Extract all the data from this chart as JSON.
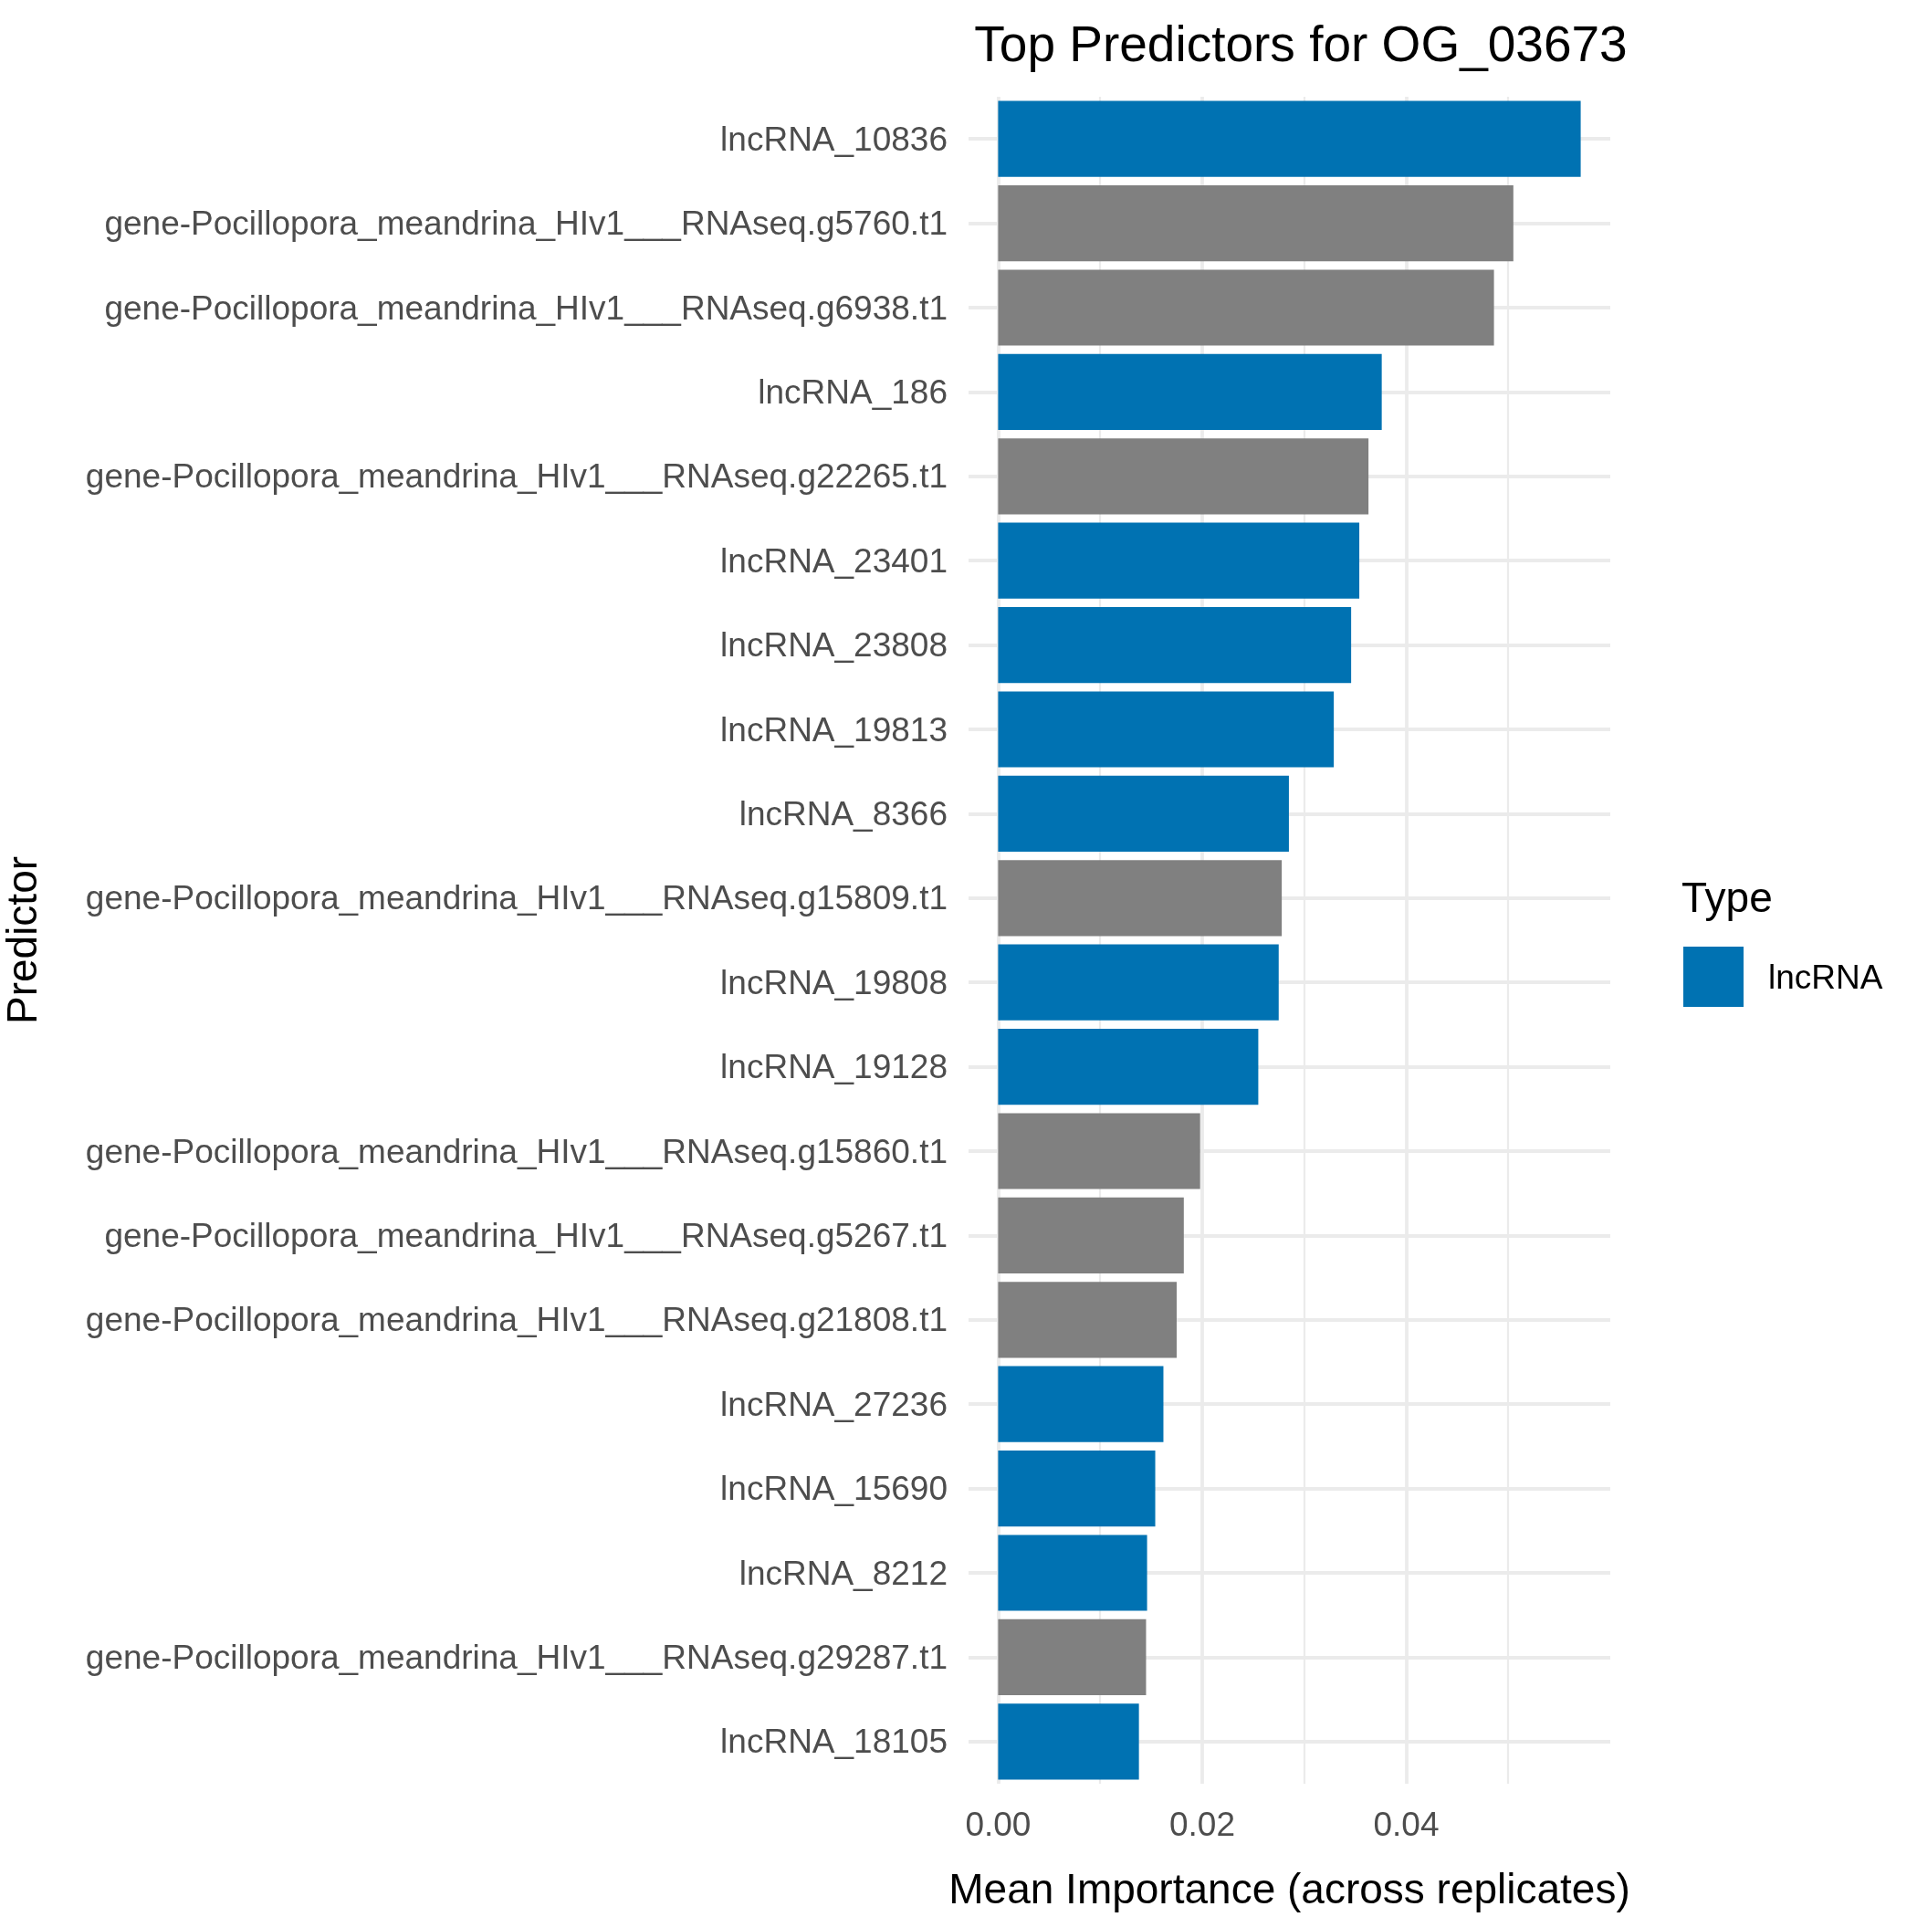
{
  "chart_data": {
    "type": "bar",
    "orientation": "horizontal",
    "title": "Top Predictors for OG_03673",
    "xlabel": "Mean Importance (across replicates)",
    "ylabel": "Predictor",
    "legend_title": "Type",
    "categories": [
      "lncRNA_10836",
      "gene-Pocillopora_meandrina_HIv1___RNAseq.g5760.t1",
      "gene-Pocillopora_meandrina_HIv1___RNAseq.g6938.t1",
      "lncRNA_186",
      "gene-Pocillopora_meandrina_HIv1___RNAseq.g22265.t1",
      "lncRNA_23401",
      "lncRNA_23808",
      "lncRNA_19813",
      "lncRNA_8366",
      "gene-Pocillopora_meandrina_HIv1___RNAseq.g15809.t1",
      "lncRNA_19808",
      "lncRNA_19128",
      "gene-Pocillopora_meandrina_HIv1___RNAseq.g15860.t1",
      "gene-Pocillopora_meandrina_HIv1___RNAseq.g5267.t1",
      "gene-Pocillopora_meandrina_HIv1___RNAseq.g21808.t1",
      "lncRNA_27236",
      "lncRNA_15690",
      "lncRNA_8212",
      "gene-Pocillopora_meandrina_HIv1___RNAseq.g29287.t1",
      "lncRNA_18105"
    ],
    "series": [
      {
        "name": "lncRNA",
        "color": "#0072b2",
        "values": [
          0.0571,
          null,
          null,
          0.0376,
          null,
          0.0354,
          0.0346,
          0.0329,
          0.0285,
          null,
          0.0275,
          0.0255,
          null,
          null,
          null,
          0.0162,
          0.0154,
          0.0146,
          null,
          0.0138
        ]
      },
      {
        "color": "#808080",
        "values": [
          null,
          0.0505,
          0.0486,
          null,
          0.0363,
          null,
          null,
          null,
          null,
          0.0278,
          null,
          null,
          0.0198,
          0.0182,
          0.0175,
          null,
          null,
          null,
          0.0145,
          null
        ]
      }
    ],
    "xlim": [
      -0.0029,
      0.06
    ],
    "xticks": [
      {
        "value": 0,
        "label": "0.00"
      },
      {
        "value": 0.01,
        "label": null
      },
      {
        "value": 0.02,
        "label": "0.02"
      },
      {
        "value": 0.03,
        "label": null
      },
      {
        "value": 0.04,
        "label": "0.04"
      },
      {
        "value": 0.05,
        "label": null
      }
    ],
    "grid": true,
    "legend": "right"
  }
}
